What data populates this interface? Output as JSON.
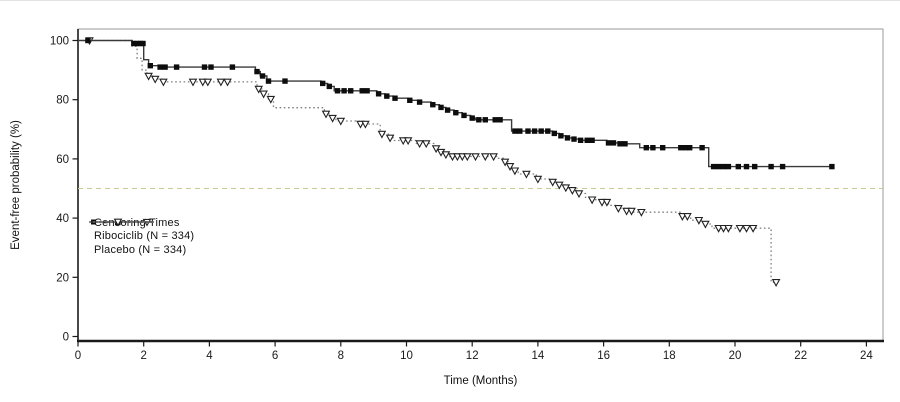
{
  "figure": {
    "x_axis_title": "Time (Months)",
    "y_axis_title": "Event-free probability (%)"
  },
  "legend": {
    "censoring_label": "Censoring Times",
    "ribociclib_label": "Ribociclib (N = 334)",
    "placebo_label": "Placebo (N = 334)"
  },
  "chart_data": {
    "type": "line",
    "subtype": "kaplan-meier-step",
    "title": "",
    "xlabel": "Time (Months)",
    "ylabel": "Event-free probability (%)",
    "xlim": [
      0,
      24.5
    ],
    "ylim": [
      0,
      100
    ],
    "xticks": [
      0,
      2,
      4,
      6,
      8,
      10,
      12,
      14,
      16,
      18,
      20,
      22,
      24
    ],
    "yticks": [
      0,
      20,
      40,
      60,
      80,
      100
    ],
    "grid": false,
    "legend_position": "inside-mid-left",
    "reference_line": {
      "y": 50,
      "style": "dashed",
      "color": "#c9c996"
    },
    "colors": {
      "ribociclib_line": "#3a3a3a",
      "ribociclib_marker": "#0d0d0d",
      "placebo_line": "#808080",
      "placebo_marker_stroke": "#222222",
      "axis": "#1a1a1a",
      "box": "#9a9a9a"
    },
    "series": [
      {
        "name": "Ribociclib (N = 334)",
        "n": 334,
        "line": "solid",
        "marker": "filled-square",
        "steps": [
          [
            0,
            100
          ],
          [
            1.65,
            99
          ],
          [
            2.0,
            93.5
          ],
          [
            2.15,
            91.5
          ],
          [
            2.45,
            91
          ],
          [
            5.4,
            89.5
          ],
          [
            5.55,
            88
          ],
          [
            5.75,
            86.3
          ],
          [
            7.4,
            85.5
          ],
          [
            7.6,
            84.5
          ],
          [
            7.8,
            83
          ],
          [
            9.1,
            82
          ],
          [
            9.35,
            81.2
          ],
          [
            9.6,
            80.5
          ],
          [
            10.05,
            79.8
          ],
          [
            10.35,
            79.2
          ],
          [
            10.75,
            78.3
          ],
          [
            11.0,
            77.4
          ],
          [
            11.2,
            76.5
          ],
          [
            11.45,
            75.6
          ],
          [
            11.7,
            74.7
          ],
          [
            11.95,
            73.8
          ],
          [
            12.1,
            73.2
          ],
          [
            13.2,
            69.4
          ],
          [
            14.45,
            68.6
          ],
          [
            14.65,
            67.8
          ],
          [
            14.85,
            67.1
          ],
          [
            15.05,
            66.7
          ],
          [
            15.25,
            66.3
          ],
          [
            16.1,
            65.4
          ],
          [
            16.45,
            65.1
          ],
          [
            17.1,
            63.8
          ],
          [
            19.2,
            57.4
          ],
          [
            23.0,
            57.4
          ]
        ],
        "censor_times": [
          0.3,
          1.7,
          1.8,
          1.9,
          1.98,
          2.2,
          2.5,
          2.65,
          3.0,
          3.85,
          4.05,
          4.7,
          5.45,
          5.62,
          5.8,
          6.3,
          7.45,
          7.65,
          7.9,
          8.1,
          8.3,
          8.65,
          8.8,
          9.15,
          9.4,
          9.65,
          10.1,
          10.4,
          10.8,
          11.05,
          11.25,
          11.5,
          11.75,
          12.0,
          12.2,
          12.4,
          12.7,
          12.85,
          13.3,
          13.45,
          13.7,
          13.9,
          14.1,
          14.3,
          14.5,
          14.7,
          14.9,
          15.1,
          15.3,
          15.5,
          15.65,
          16.15,
          16.3,
          16.5,
          16.65,
          17.3,
          17.5,
          17.8,
          18.35,
          18.5,
          18.62,
          19.0,
          19.35,
          19.5,
          19.65,
          19.8,
          20.1,
          20.35,
          20.6,
          21.1,
          21.45,
          22.95
        ]
      },
      {
        "name": "Placebo (N = 334)",
        "n": 334,
        "line": "dotted",
        "marker": "open-inverted-triangle",
        "steps": [
          [
            0,
            100
          ],
          [
            1.65,
            98
          ],
          [
            1.8,
            94
          ],
          [
            1.95,
            90
          ],
          [
            2.1,
            88
          ],
          [
            2.3,
            87
          ],
          [
            2.55,
            86
          ],
          [
            5.45,
            83.6
          ],
          [
            5.6,
            82
          ],
          [
            5.8,
            80.2
          ],
          [
            5.95,
            77.3
          ],
          [
            7.5,
            75.2
          ],
          [
            7.7,
            73.8
          ],
          [
            7.85,
            72.8
          ],
          [
            8.55,
            71.8
          ],
          [
            9.2,
            68.4
          ],
          [
            9.45,
            67.1
          ],
          [
            9.6,
            66.2
          ],
          [
            10.3,
            65.2
          ],
          [
            10.85,
            63.5
          ],
          [
            11.0,
            62.3
          ],
          [
            11.15,
            61.5
          ],
          [
            11.3,
            60.8
          ],
          [
            12.75,
            60.2
          ],
          [
            12.95,
            59
          ],
          [
            13.1,
            57.5
          ],
          [
            13.25,
            56
          ],
          [
            13.4,
            54.9
          ],
          [
            13.95,
            53.2
          ],
          [
            14.35,
            52.2
          ],
          [
            14.6,
            51.2
          ],
          [
            14.8,
            50.3
          ],
          [
            15.0,
            49.4
          ],
          [
            15.2,
            48.3
          ],
          [
            15.45,
            47
          ],
          [
            15.6,
            46.2
          ],
          [
            15.9,
            45.4
          ],
          [
            16.15,
            44.3
          ],
          [
            16.4,
            43.3
          ],
          [
            16.65,
            42.4
          ],
          [
            16.9,
            42
          ],
          [
            18.35,
            40.6
          ],
          [
            18.65,
            39.3
          ],
          [
            19.05,
            38
          ],
          [
            19.3,
            36.6
          ],
          [
            21.1,
            18.3
          ],
          [
            21.3,
            18.3
          ]
        ],
        "censor_times": [
          0.35,
          2.15,
          2.35,
          2.6,
          3.5,
          3.8,
          3.95,
          4.35,
          4.55,
          5.5,
          5.65,
          5.87,
          7.55,
          7.75,
          8.0,
          8.6,
          8.75,
          9.25,
          9.5,
          9.9,
          10.05,
          10.4,
          10.6,
          10.9,
          11.05,
          11.2,
          11.4,
          11.55,
          11.7,
          11.85,
          12.1,
          12.4,
          12.65,
          13.0,
          13.15,
          13.3,
          13.65,
          14.0,
          14.45,
          14.65,
          14.85,
          15.05,
          15.25,
          15.65,
          15.95,
          16.1,
          16.45,
          16.7,
          16.85,
          17.15,
          18.4,
          18.55,
          18.9,
          19.1,
          19.5,
          19.65,
          19.8,
          20.15,
          20.35,
          20.55,
          21.25
        ]
      }
    ]
  }
}
